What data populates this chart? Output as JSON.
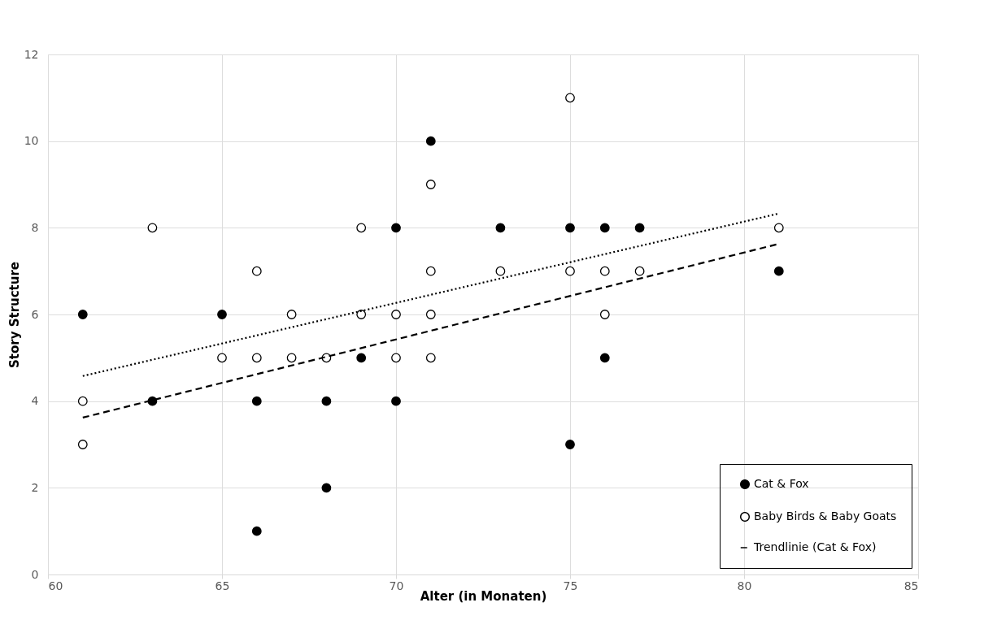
{
  "chart_data": {
    "type": "scatter",
    "xlabel": "Alter (in Monaten)",
    "ylabel": "Story Structure",
    "xlim": [
      60,
      85
    ],
    "xticks": [
      60,
      65,
      70,
      75,
      80,
      85
    ],
    "ylim": [
      0,
      12
    ],
    "yticks": [
      0,
      2,
      4,
      6,
      8,
      10,
      12
    ],
    "grid": true,
    "legend": "bottom right",
    "marker": "circle",
    "series": [
      {
        "name": "Cat & Fox",
        "type": "scatter",
        "color": "#000000",
        "x": [
          61,
          63,
          65,
          66,
          66,
          68,
          68,
          69,
          70,
          70,
          71,
          73,
          75,
          75,
          76,
          76,
          77,
          81
        ],
        "values": [
          6,
          4,
          6,
          4,
          1,
          4,
          2,
          5,
          8,
          4,
          10,
          8,
          8,
          3,
          8,
          5,
          8,
          7
        ]
      },
      {
        "name": "Baby Birds & Baby Goats",
        "type": "scatter",
        "color": "#ffffff",
        "x": [
          61,
          61,
          63,
          65,
          66,
          66,
          67,
          67,
          68,
          69,
          69,
          70,
          70,
          71,
          71,
          71,
          71,
          73,
          75,
          75,
          76,
          76,
          77,
          81
        ],
        "values": [
          4,
          3,
          8,
          5,
          7,
          5,
          6,
          5,
          5,
          8,
          6,
          6,
          5,
          9,
          7,
          6,
          5,
          7,
          11,
          7,
          7,
          6,
          7,
          8
        ]
      },
      {
        "name": "Trendlinie (Cat & Fox)",
        "type": "line",
        "color": "#000000",
        "line_style": "dashed",
        "marker": "none",
        "x": [
          61,
          81
        ],
        "values": [
          3.62,
          7.63
        ]
      },
      {
        "type": "line",
        "color": "#000000",
        "line_style": "dotted",
        "marker": "none",
        "x": [
          61,
          81
        ],
        "values": [
          4.58,
          8.33
        ]
      }
    ]
  }
}
